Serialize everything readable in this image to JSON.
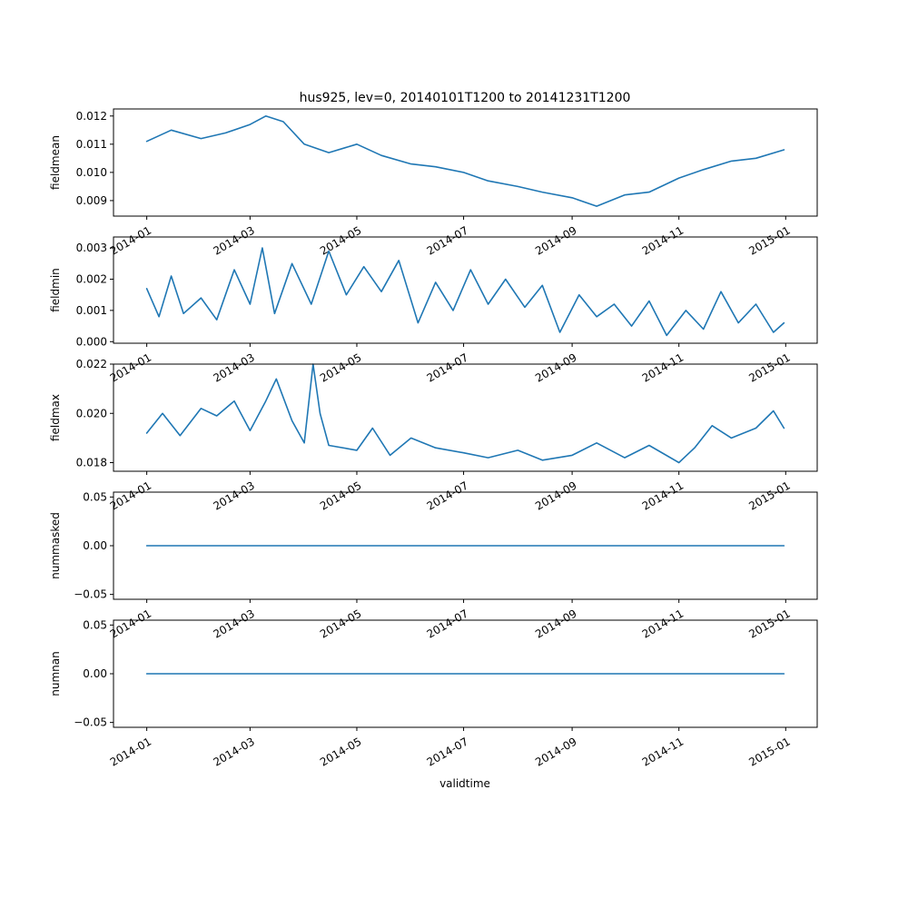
{
  "figure": {
    "title": "hus925, lev=0, 20140101T1200 to 20141231T1200",
    "xlabel": "validtime"
  },
  "colors": {
    "series": "#1f77b4",
    "axes": "#000000",
    "background": "#ffffff"
  },
  "chart_data": [
    {
      "type": "line",
      "ylabel": "fieldmean",
      "xlim": [
        "2013-12-13",
        "2015-01-19"
      ],
      "ylim": [
        0.00845,
        0.01225
      ],
      "yticks": [
        "0.009",
        "0.010",
        "0.011",
        "0.012"
      ],
      "ytick_values": [
        0.009,
        0.01,
        0.011,
        0.012
      ],
      "xticks": [
        "2014-01",
        "2014-03",
        "2014-05",
        "2014-07",
        "2014-09",
        "2014-11",
        "2015-01"
      ],
      "xtick_values": [
        "2014-01-01",
        "2014-03-01",
        "2014-05-01",
        "2014-07-01",
        "2014-09-01",
        "2014-11-01",
        "2015-01-01"
      ],
      "series": [
        {
          "name": "",
          "x": [
            "2014-01-01",
            "2014-01-15",
            "2014-02-01",
            "2014-02-15",
            "2014-03-01",
            "2014-03-10",
            "2014-03-20",
            "2014-04-01",
            "2014-04-15",
            "2014-05-01",
            "2014-05-15",
            "2014-06-01",
            "2014-06-15",
            "2014-07-01",
            "2014-07-15",
            "2014-08-01",
            "2014-08-15",
            "2014-09-01",
            "2014-09-15",
            "2014-10-01",
            "2014-10-15",
            "2014-11-01",
            "2014-11-15",
            "2014-12-01",
            "2014-12-15",
            "2014-12-31"
          ],
          "y": [
            0.0111,
            0.0115,
            0.0112,
            0.0114,
            0.0117,
            0.012,
            0.0118,
            0.011,
            0.0107,
            0.011,
            0.0106,
            0.0103,
            0.0102,
            0.01,
            0.0097,
            0.0095,
            0.0093,
            0.0091,
            0.0088,
            0.0092,
            0.0093,
            0.0098,
            0.0101,
            0.0104,
            0.0105,
            0.0108
          ]
        }
      ]
    },
    {
      "type": "line",
      "ylabel": "fieldmin",
      "xlim": [
        "2013-12-13",
        "2015-01-19"
      ],
      "ylim": [
        -5e-05,
        0.00335
      ],
      "yticks": [
        "0.000",
        "0.001",
        "0.002",
        "0.003"
      ],
      "ytick_values": [
        0.0,
        0.001,
        0.002,
        0.003
      ],
      "xticks": [
        "2014-01",
        "2014-03",
        "2014-05",
        "2014-07",
        "2014-09",
        "2014-11",
        "2015-01"
      ],
      "xtick_values": [
        "2014-01-01",
        "2014-03-01",
        "2014-05-01",
        "2014-07-01",
        "2014-09-01",
        "2014-11-01",
        "2015-01-01"
      ],
      "series": [
        {
          "name": "",
          "x": [
            "2014-01-01",
            "2014-01-08",
            "2014-01-15",
            "2014-01-22",
            "2014-02-01",
            "2014-02-10",
            "2014-02-20",
            "2014-03-01",
            "2014-03-08",
            "2014-03-15",
            "2014-03-25",
            "2014-04-05",
            "2014-04-15",
            "2014-04-25",
            "2014-05-05",
            "2014-05-15",
            "2014-05-25",
            "2014-06-05",
            "2014-06-15",
            "2014-06-25",
            "2014-07-05",
            "2014-07-15",
            "2014-07-25",
            "2014-08-05",
            "2014-08-15",
            "2014-08-25",
            "2014-09-05",
            "2014-09-15",
            "2014-09-25",
            "2014-10-05",
            "2014-10-15",
            "2014-10-25",
            "2014-11-05",
            "2014-11-15",
            "2014-11-25",
            "2014-12-05",
            "2014-12-15",
            "2014-12-25",
            "2014-12-31"
          ],
          "y": [
            0.0017,
            0.0008,
            0.0021,
            0.0009,
            0.0014,
            0.0007,
            0.0023,
            0.0012,
            0.003,
            0.0009,
            0.0025,
            0.0012,
            0.0029,
            0.0015,
            0.0024,
            0.0016,
            0.0026,
            0.0006,
            0.0019,
            0.001,
            0.0023,
            0.0012,
            0.002,
            0.0011,
            0.0018,
            0.0003,
            0.0015,
            0.0008,
            0.0012,
            0.0005,
            0.0013,
            0.0002,
            0.001,
            0.0004,
            0.0016,
            0.0006,
            0.0012,
            0.0003,
            0.0006
          ]
        }
      ]
    },
    {
      "type": "line",
      "ylabel": "fieldmax",
      "xlim": [
        "2013-12-13",
        "2015-01-19"
      ],
      "ylim": [
        0.01765,
        0.022
      ],
      "yticks": [
        "0.018",
        "0.020",
        "0.022"
      ],
      "ytick_values": [
        0.018,
        0.02,
        0.022
      ],
      "xticks": [
        "2014-01",
        "2014-03",
        "2014-05",
        "2014-07",
        "2014-09",
        "2014-11",
        "2015-01"
      ],
      "xtick_values": [
        "2014-01-01",
        "2014-03-01",
        "2014-05-01",
        "2014-07-01",
        "2014-09-01",
        "2014-11-01",
        "2015-01-01"
      ],
      "series": [
        {
          "name": "",
          "x": [
            "2014-01-01",
            "2014-01-10",
            "2014-01-20",
            "2014-02-01",
            "2014-02-10",
            "2014-02-20",
            "2014-03-01",
            "2014-03-10",
            "2014-03-16",
            "2014-03-25",
            "2014-04-01",
            "2014-04-06",
            "2014-04-10",
            "2014-04-15",
            "2014-05-01",
            "2014-05-10",
            "2014-05-20",
            "2014-06-01",
            "2014-06-15",
            "2014-07-01",
            "2014-07-15",
            "2014-08-01",
            "2014-08-15",
            "2014-09-01",
            "2014-09-15",
            "2014-10-01",
            "2014-10-15",
            "2014-11-01",
            "2014-11-10",
            "2014-11-20",
            "2014-12-01",
            "2014-12-15",
            "2014-12-25",
            "2014-12-31"
          ],
          "y": [
            0.0192,
            0.02,
            0.0191,
            0.0202,
            0.0199,
            0.0205,
            0.0193,
            0.0205,
            0.0214,
            0.0197,
            0.0188,
            0.022,
            0.02,
            0.0187,
            0.0185,
            0.0194,
            0.0183,
            0.019,
            0.0186,
            0.0184,
            0.0182,
            0.0185,
            0.0181,
            0.0183,
            0.0188,
            0.0182,
            0.0187,
            0.018,
            0.0186,
            0.0195,
            0.019,
            0.0194,
            0.0201,
            0.0194
          ]
        }
      ]
    },
    {
      "type": "line",
      "ylabel": "nummasked",
      "xlim": [
        "2013-12-13",
        "2015-01-19"
      ],
      "ylim": [
        -0.055,
        0.055
      ],
      "yticks": [
        "−0.05",
        "0.00",
        "0.05"
      ],
      "ytick_values": [
        -0.05,
        0.0,
        0.05
      ],
      "xticks": [
        "2014-01",
        "2014-03",
        "2014-05",
        "2014-07",
        "2014-09",
        "2014-11",
        "2015-01"
      ],
      "xtick_values": [
        "2014-01-01",
        "2014-03-01",
        "2014-05-01",
        "2014-07-01",
        "2014-09-01",
        "2014-11-01",
        "2015-01-01"
      ],
      "series": [
        {
          "name": "",
          "x": [
            "2014-01-01",
            "2014-12-31"
          ],
          "y": [
            0,
            0
          ]
        }
      ]
    },
    {
      "type": "line",
      "ylabel": "numnan",
      "xlim": [
        "2013-12-13",
        "2015-01-19"
      ],
      "ylim": [
        -0.055,
        0.055
      ],
      "yticks": [
        "−0.05",
        "0.00",
        "0.05"
      ],
      "ytick_values": [
        -0.05,
        0.0,
        0.05
      ],
      "xticks": [
        "2014-01",
        "2014-03",
        "2014-05",
        "2014-07",
        "2014-09",
        "2014-11",
        "2015-01"
      ],
      "xtick_values": [
        "2014-01-01",
        "2014-03-01",
        "2014-05-01",
        "2014-07-01",
        "2014-09-01",
        "2014-11-01",
        "2015-01-01"
      ],
      "series": [
        {
          "name": "",
          "x": [
            "2014-01-01",
            "2014-12-31"
          ],
          "y": [
            0,
            0
          ]
        }
      ]
    }
  ]
}
